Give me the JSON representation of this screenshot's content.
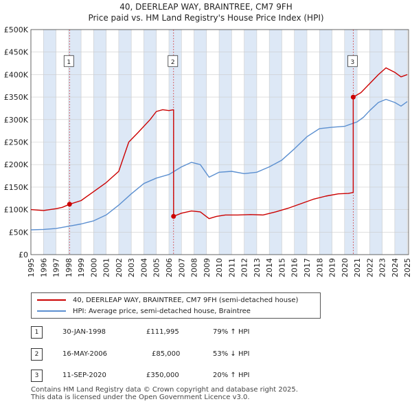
{
  "colors": {
    "property": "#cc0000",
    "hpi": "#5b8fd0",
    "shade": "#dde8f6",
    "grid": "#cccccc",
    "axis": "#444444"
  },
  "chart_data": {
    "type": "line",
    "title": "40, DEERLEAP WAY, BRAINTREE, CM7 9FH",
    "subtitle": "Price paid vs. HM Land Registry's House Price Index (HPI)",
    "xlim": [
      1995,
      2025.1
    ],
    "ylim": [
      0,
      500000
    ],
    "y_ticks": [
      0,
      50000,
      100000,
      150000,
      200000,
      250000,
      300000,
      350000,
      400000,
      450000,
      500000
    ],
    "y_tick_labels": [
      "£0",
      "£50K",
      "£100K",
      "£150K",
      "£200K",
      "£250K",
      "£300K",
      "£350K",
      "£400K",
      "£450K",
      "£500K"
    ],
    "x_ticks": [
      1995,
      1996,
      1997,
      1998,
      1999,
      2000,
      2001,
      2002,
      2003,
      2004,
      2005,
      2006,
      2007,
      2008,
      2009,
      2010,
      2011,
      2012,
      2013,
      2014,
      2015,
      2016,
      2017,
      2018,
      2019,
      2020,
      2021,
      2022,
      2023,
      2024,
      2025
    ],
    "x_tick_labels": [
      "1995",
      "1996",
      "1997",
      "1998",
      "1999",
      "2000",
      "2001",
      "2002",
      "2003",
      "2004",
      "2005",
      "2006",
      "2007",
      "2008",
      "2009",
      "2010",
      "2011",
      "2012",
      "2013",
      "2014",
      "2015",
      "2016",
      "2017",
      "2018",
      "2019",
      "2020",
      "2021",
      "2022",
      "2023",
      "2024",
      "2025"
    ],
    "shaded_years": [
      1996,
      1998,
      2000,
      2002,
      2004,
      2006,
      2008,
      2010,
      2012,
      2014,
      2016,
      2018,
      2020,
      2022,
      2024
    ],
    "series": [
      {
        "name": "40, DEERLEAP WAY, BRAINTREE, CM7 9FH (semi-detached house)",
        "x": [
          1995.0,
          1996.0,
          1997.0,
          1997.5,
          1998.08,
          1999.0,
          2000.0,
          2001.0,
          2002.0,
          2002.8,
          2003.5,
          2004.5,
          2005.0,
          2005.5,
          2006.0,
          2006.37,
          2006.37,
          2007.0,
          2007.8,
          2008.5,
          2009.2,
          2009.8,
          2010.5,
          2011.5,
          2012.5,
          2013.5,
          2014.5,
          2015.5,
          2016.5,
          2017.5,
          2018.5,
          2019.5,
          2020.3,
          2020.69,
          2020.69,
          2021.3,
          2022.0,
          2022.7,
          2023.3,
          2024.0,
          2024.5,
          2025.0
        ],
        "values": [
          100000,
          98000,
          102000,
          105000,
          111995,
          120000,
          140000,
          160000,
          185000,
          250000,
          270000,
          300000,
          318000,
          322000,
          320000,
          322000,
          85000,
          92000,
          97000,
          95000,
          80000,
          85000,
          88000,
          88000,
          89000,
          88000,
          95000,
          103000,
          113000,
          123000,
          130000,
          135000,
          136000,
          138000,
          350000,
          360000,
          380000,
          400000,
          415000,
          405000,
          395000,
          400000
        ]
      },
      {
        "name": "HPI: Average price, semi-detached house, Braintree",
        "x": [
          1995.0,
          1996.0,
          1997.0,
          1998.0,
          1999.0,
          2000.0,
          2001.0,
          2002.0,
          2003.0,
          2004.0,
          2005.0,
          2006.0,
          2007.0,
          2007.8,
          2008.5,
          2009.2,
          2010.0,
          2011.0,
          2012.0,
          2013.0,
          2014.0,
          2015.0,
          2016.0,
          2017.0,
          2018.0,
          2019.0,
          2020.0,
          2020.7,
          2021.0,
          2021.5,
          2022.0,
          2022.7,
          2023.3,
          2024.0,
          2024.5,
          2025.0
        ],
        "values": [
          55000,
          56000,
          58000,
          63000,
          68000,
          75000,
          88000,
          110000,
          135000,
          158000,
          170000,
          178000,
          195000,
          205000,
          200000,
          172000,
          183000,
          185000,
          180000,
          183000,
          195000,
          210000,
          235000,
          262000,
          280000,
          283000,
          285000,
          292000,
          295000,
          305000,
          320000,
          338000,
          345000,
          338000,
          330000,
          340000
        ]
      }
    ],
    "annotations": [
      {
        "label": "1",
        "x": 1998.08,
        "y": 111995
      },
      {
        "label": "2",
        "x": 2006.37,
        "y": 85000
      },
      {
        "label": "3",
        "x": 2020.69,
        "y": 350000
      }
    ]
  },
  "legend": {
    "property_label": "40, DEERLEAP WAY, BRAINTREE, CM7 9FH (semi-detached house)",
    "hpi_label": "HPI: Average price, semi-detached house, Braintree"
  },
  "sales": [
    {
      "num": "1",
      "date": "30-JAN-1998",
      "price": "£111,995",
      "hpi": "79% ↑ HPI"
    },
    {
      "num": "2",
      "date": "16-MAY-2006",
      "price": "£85,000",
      "hpi": "53% ↓ HPI"
    },
    {
      "num": "3",
      "date": "11-SEP-2020",
      "price": "£350,000",
      "hpi": "20% ↑ HPI"
    }
  ],
  "footer": {
    "line1": "Contains HM Land Registry data © Crown copyright and database right 2025.",
    "line2": "This data is licensed under the Open Government Licence v3.0."
  }
}
